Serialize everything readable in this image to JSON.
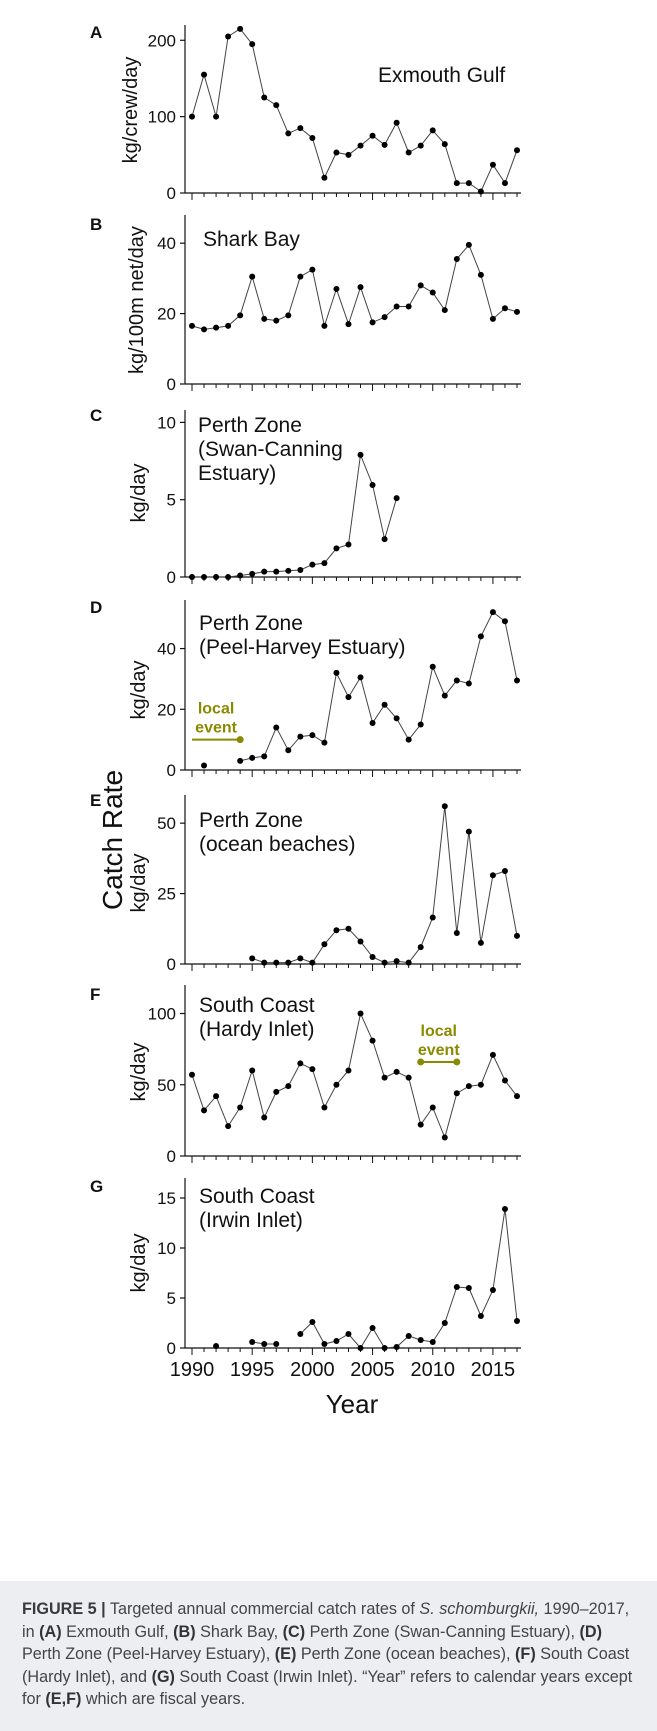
{
  "chart_data": [
    {
      "type": "line",
      "panel": "A",
      "title": "Exmouth Gulf",
      "ylabel": "kg/crew/day",
      "ylim": [
        0,
        220
      ],
      "yticks": [
        0,
        100,
        200
      ],
      "xlim": [
        1990,
        2017
      ],
      "x": [
        1990,
        1991,
        1992,
        1993,
        1994,
        1995,
        1996,
        1997,
        1998,
        1999,
        2000,
        2001,
        2002,
        2003,
        2004,
        2005,
        2006,
        2007,
        2008,
        2009,
        2010,
        2011,
        2012,
        2013,
        2014,
        2015,
        2016,
        2017
      ],
      "values": [
        100,
        155,
        100,
        205,
        215,
        195,
        125,
        115,
        78,
        85,
        72,
        20,
        53,
        50,
        62,
        75,
        63,
        92,
        53,
        62,
        82,
        64,
        13,
        13,
        2,
        37,
        13,
        56
      ]
    },
    {
      "type": "line",
      "panel": "B",
      "title": "Shark Bay",
      "ylabel": "kg/100m net/day",
      "ylim": [
        0,
        48
      ],
      "yticks": [
        0,
        20,
        40
      ],
      "xlim": [
        1990,
        2017
      ],
      "x": [
        1990,
        1991,
        1992,
        1993,
        1994,
        1995,
        1996,
        1997,
        1998,
        1999,
        2000,
        2001,
        2002,
        2003,
        2004,
        2005,
        2006,
        2007,
        2008,
        2009,
        2010,
        2011,
        2012,
        2013,
        2014,
        2015,
        2016,
        2017
      ],
      "values": [
        16.5,
        15.5,
        16,
        16.5,
        19.5,
        30.5,
        18.5,
        18,
        19.5,
        30.5,
        32.5,
        16.5,
        27,
        17,
        27.5,
        17.5,
        19,
        22,
        22,
        28,
        26,
        21,
        35.5,
        39.5,
        31,
        18.5,
        21.5,
        20.5
      ]
    },
    {
      "type": "line",
      "panel": "C",
      "title": [
        "Perth Zone",
        "(Swan-Canning",
        "Estuary)"
      ],
      "ylabel": "kg/day",
      "ylim": [
        0,
        10.8
      ],
      "yticks": [
        0,
        5,
        10
      ],
      "xlim": [
        1990,
        2017
      ],
      "x": [
        1990,
        1991,
        1992,
        1993,
        1994,
        1995,
        1996,
        1997,
        1998,
        1999,
        2000,
        2001,
        2002,
        2003,
        2004,
        2005,
        2006,
        2007
      ],
      "values": [
        0,
        0,
        0,
        0,
        0.1,
        0.2,
        0.35,
        0.35,
        0.4,
        0.45,
        0.8,
        0.9,
        1.85,
        2.1,
        7.9,
        5.95,
        2.45,
        5.1
      ]
    },
    {
      "type": "line",
      "panel": "D",
      "title": [
        "Perth Zone",
        "(Peel-Harvey Estuary)"
      ],
      "ylabel": "kg/day",
      "ylim": [
        0,
        56
      ],
      "yticks": [
        0,
        20,
        40
      ],
      "xlim": [
        1990,
        2017
      ],
      "x": [
        1991,
        1994,
        1995,
        1996,
        1997,
        1998,
        1999,
        2000,
        2001,
        2002,
        2003,
        2004,
        2005,
        2006,
        2007,
        2008,
        2009,
        2010,
        2011,
        2012,
        2013,
        2014,
        2015,
        2016,
        2017
      ],
      "values": [
        1.5,
        3,
        4,
        4.5,
        14,
        6.5,
        11,
        11.5,
        9,
        32,
        24,
        30.5,
        15.5,
        21.5,
        17,
        10,
        15,
        34,
        24.5,
        29.5,
        28.5,
        44,
        52,
        49,
        29.5
      ],
      "segments": [
        [
          1991
        ],
        [
          1994,
          1995,
          1996,
          1997,
          1998,
          1999,
          2000,
          2001,
          2002,
          2003,
          2004,
          2005,
          2006,
          2007,
          2008,
          2009,
          2010,
          2011,
          2012,
          2013,
          2014,
          2015,
          2016,
          2017
        ]
      ],
      "annotation": {
        "text": [
          "local",
          "event"
        ],
        "x_range": [
          1990,
          1994
        ],
        "y": 10
      }
    },
    {
      "type": "line",
      "panel": "E",
      "title": [
        "Perth Zone",
        "(ocean beaches)"
      ],
      "ylabel": "kg/day",
      "ylim": [
        0,
        60
      ],
      "yticks": [
        0,
        25,
        50
      ],
      "xlim": [
        1990,
        2017
      ],
      "x": [
        1995,
        1996,
        1997,
        1998,
        1999,
        2000,
        2001,
        2002,
        2003,
        2004,
        2005,
        2006,
        2007,
        2008,
        2009,
        2010,
        2011,
        2012,
        2013,
        2014,
        2015,
        2016,
        2017
      ],
      "values": [
        2,
        0.5,
        0.5,
        0.5,
        2,
        0.5,
        7,
        12,
        12.5,
        8,
        2.5,
        0.5,
        1,
        0.5,
        6,
        16.5,
        56,
        11,
        47,
        7.5,
        31.5,
        33,
        10
      ]
    },
    {
      "type": "line",
      "panel": "F",
      "title": [
        "South Coast",
        "(Hardy Inlet)"
      ],
      "ylabel": "kg/day",
      "ylim": [
        0,
        120
      ],
      "yticks": [
        0,
        50,
        100
      ],
      "xlim": [
        1990,
        2017
      ],
      "x": [
        1990,
        1991,
        1992,
        1993,
        1994,
        1995,
        1996,
        1997,
        1998,
        1999,
        2000,
        2001,
        2002,
        2003,
        2004,
        2005,
        2006,
        2007,
        2008,
        2009,
        2010,
        2011,
        2012,
        2013,
        2014,
        2015,
        2016,
        2017
      ],
      "values": [
        57,
        32,
        42,
        21,
        34,
        60,
        27,
        45,
        49,
        65,
        61,
        34,
        50,
        60,
        100,
        81,
        55,
        59,
        55,
        22,
        34,
        13,
        44,
        49,
        50,
        71,
        53,
        42
      ],
      "annotation": {
        "text": [
          "local",
          "event"
        ],
        "x_range": [
          2009,
          2012
        ],
        "y": 66
      }
    },
    {
      "type": "line",
      "panel": "G",
      "title": [
        "South Coast",
        "(Irwin Inlet)"
      ],
      "ylabel": "kg/day",
      "ylim": [
        0,
        17
      ],
      "yticks": [
        0,
        5,
        10,
        15
      ],
      "xlim": [
        1990,
        2017
      ],
      "xticks": [
        1990,
        1995,
        2000,
        2005,
        2010,
        2015
      ],
      "xlabel": "Year",
      "x": [
        1992,
        1995,
        1996,
        1997,
        1999,
        2000,
        2001,
        2002,
        2003,
        2004,
        2005,
        2006,
        2007,
        2008,
        2009,
        2010,
        2011,
        2012,
        2013,
        2014,
        2015,
        2016,
        2017
      ],
      "values": [
        0.2,
        0.6,
        0.4,
        0.4,
        1.4,
        2.6,
        0.4,
        0.7,
        1.4,
        0,
        2,
        0,
        0.1,
        1.2,
        0.8,
        0.6,
        2.5,
        6.1,
        6,
        3.2,
        5.8,
        13.9,
        2.7
      ],
      "segments": [
        [
          1992
        ],
        [
          1995,
          1996,
          1997
        ],
        [
          1999,
          2000,
          2001,
          2002,
          2003,
          2004,
          2005,
          2006,
          2007,
          2008,
          2009,
          2010,
          2011,
          2012,
          2013,
          2014,
          2015,
          2016,
          2017
        ]
      ]
    }
  ],
  "shared_ylabel": "Catch Rate",
  "colors": {
    "line": "#444444",
    "marker": "#000000",
    "annotation": "#8a8a00",
    "caption_bg": "#eceef2"
  },
  "caption": {
    "label": "FIGURE 5 |",
    "t1": " Targeted annual commercial catch rates of ",
    "species": "S. schomburgkii,",
    "t2": " 1990–2017, in ",
    "A": "(A)",
    "A_txt": " Exmouth Gulf, ",
    "B": "(B)",
    "B_txt": " Shark Bay, ",
    "C": "(C)",
    "C_txt": " Perth Zone (Swan-Canning Estuary), ",
    "D": "(D)",
    "D_txt": " Perth Zone (Peel-Harvey Estuary), ",
    "E": "(E)",
    "E_txt": " Perth Zone (ocean beaches), ",
    "F": "(F)",
    "F_txt": " South Coast (Hardy Inlet), and ",
    "G": "(G)",
    "G_txt": " South Coast (Irwin Inlet). “Year” refers to calendar years except for ",
    "EF": "(E,F)",
    "end": " which are fiscal years."
  }
}
